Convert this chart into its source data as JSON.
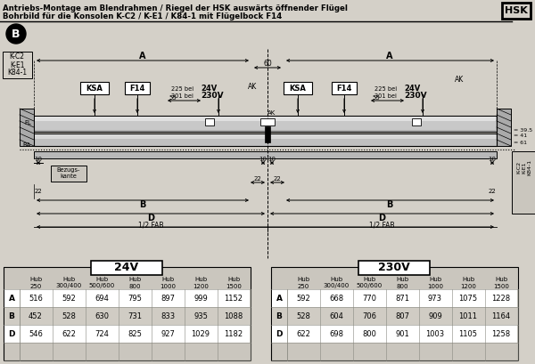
{
  "title_line1": "Antriebs-Montage am Blendrahmen / Riegel der HSK auswärts öffnender Flügel",
  "title_line2": "Bohrbild für die Konsolen K-C2 / K-E1 / K84-1 mit Flügelbock F14",
  "bg_color": "#d4d0c8",
  "white": "#ffffff",
  "black": "#000000",
  "table_24v_rows": [
    [
      "A",
      "516",
      "592",
      "694",
      "795",
      "897",
      "999",
      "1152"
    ],
    [
      "B",
      "452",
      "528",
      "630",
      "731",
      "833",
      "935",
      "1088"
    ],
    [
      "D",
      "546",
      "622",
      "724",
      "825",
      "927",
      "1029",
      "1182"
    ]
  ],
  "table_230v_rows": [
    [
      "A",
      "592",
      "668",
      "770",
      "871",
      "973",
      "1075",
      "1228"
    ],
    [
      "B",
      "528",
      "604",
      "706",
      "807",
      "909",
      "1011",
      "1164"
    ],
    [
      "D",
      "622",
      "698",
      "800",
      "901",
      "1003",
      "1105",
      "1258"
    ]
  ],
  "col_headers": [
    "Hub\n250",
    "Hub\n300/400",
    "Hub\n500/600",
    "Hub\n800",
    "Hub\n1000",
    "Hub\n1200",
    "Hub\n1500"
  ]
}
